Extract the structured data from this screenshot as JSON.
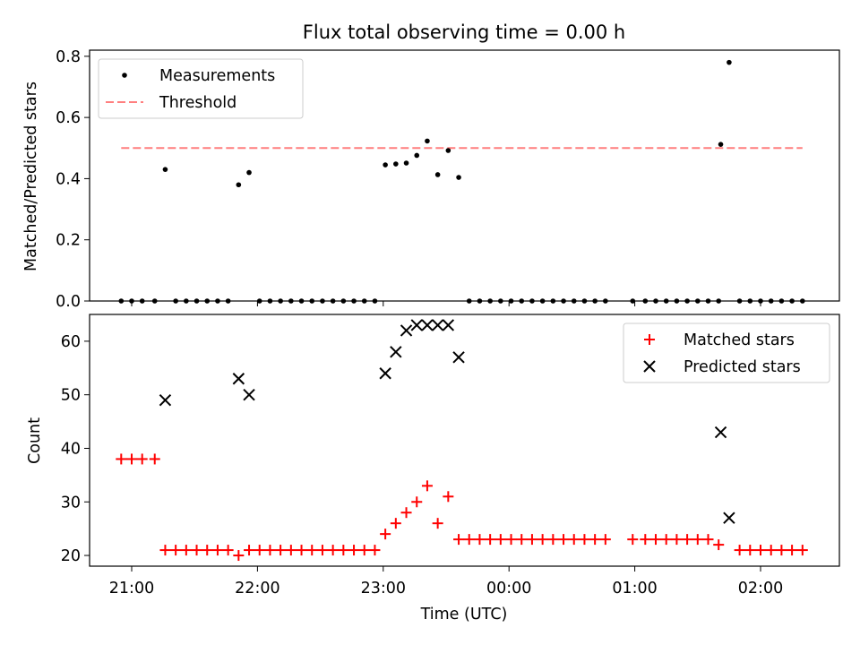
{
  "chart_data": [
    {
      "type": "scatter",
      "title": "Flux total observing time = 0.00 h",
      "ylabel": "Matched/Predicted stars",
      "ylim": [
        0,
        0.82
      ],
      "yticks": [
        0.0,
        0.2,
        0.4,
        0.6,
        0.8
      ],
      "ytick_labels": [
        "0.0",
        "0.2",
        "0.4",
        "0.6",
        "0.8"
      ],
      "legend": "top-left",
      "series": [
        {
          "name": "Measurements",
          "color": "#000000",
          "marker": "dot",
          "points": [
            [
              "20:55",
              0.0
            ],
            [
              "21:00",
              0.0
            ],
            [
              "21:05",
              0.0
            ],
            [
              "21:11",
              0.0
            ],
            [
              "21:16",
              0.43
            ],
            [
              "21:21",
              0.0
            ],
            [
              "21:26",
              0.0
            ],
            [
              "21:31",
              0.0
            ],
            [
              "21:36",
              0.0
            ],
            [
              "21:41",
              0.0
            ],
            [
              "21:46",
              0.0
            ],
            [
              "21:51",
              0.38
            ],
            [
              "21:56",
              0.42
            ],
            [
              "22:01",
              0.0
            ],
            [
              "22:06",
              0.0
            ],
            [
              "22:11",
              0.0
            ],
            [
              "22:16",
              0.0
            ],
            [
              "22:21",
              0.0
            ],
            [
              "22:26",
              0.0
            ],
            [
              "22:31",
              0.0
            ],
            [
              "22:36",
              0.0
            ],
            [
              "22:41",
              0.0
            ],
            [
              "22:46",
              0.0
            ],
            [
              "22:51",
              0.0
            ],
            [
              "22:56",
              0.0
            ],
            [
              "23:01",
              0.445
            ],
            [
              "23:06",
              0.448
            ],
            [
              "23:11",
              0.451
            ],
            [
              "23:16",
              0.476
            ],
            [
              "23:21",
              0.523
            ],
            [
              "23:26",
              0.413
            ],
            [
              "23:31",
              0.492
            ],
            [
              "23:36",
              0.404
            ],
            [
              "23:41",
              0.0
            ],
            [
              "23:46",
              0.0
            ],
            [
              "23:51",
              0.0
            ],
            [
              "23:56",
              0.0
            ],
            [
              "00:01",
              0.0
            ],
            [
              "00:06",
              0.0
            ],
            [
              "00:11",
              0.0
            ],
            [
              "00:16",
              0.0
            ],
            [
              "00:21",
              0.0
            ],
            [
              "00:26",
              0.0
            ],
            [
              "00:31",
              0.0
            ],
            [
              "00:36",
              0.0
            ],
            [
              "00:41",
              0.0
            ],
            [
              "00:46",
              0.0
            ],
            [
              "00:59",
              0.0
            ],
            [
              "01:05",
              0.0
            ],
            [
              "01:10",
              0.0
            ],
            [
              "01:15",
              0.0
            ],
            [
              "01:20",
              0.0
            ],
            [
              "01:25",
              0.0
            ],
            [
              "01:30",
              0.0
            ],
            [
              "01:35",
              0.0
            ],
            [
              "01:40",
              0.0
            ],
            [
              "01:41",
              0.512
            ],
            [
              "01:45",
              0.78
            ],
            [
              "01:50",
              0.0
            ],
            [
              "01:55",
              0.0
            ],
            [
              "02:00",
              0.0
            ],
            [
              "02:05",
              0.0
            ],
            [
              "02:10",
              0.0
            ],
            [
              "02:15",
              0.0
            ],
            [
              "02:20",
              0.0
            ]
          ]
        },
        {
          "name": "Threshold",
          "color": "#ff7f7f",
          "style": "dashed",
          "points": [
            [
              "20:55",
              0.5
            ],
            [
              "02:20",
              0.5
            ]
          ]
        }
      ]
    },
    {
      "type": "scatter",
      "xlabel": "Time (UTC)",
      "ylabel": "Count",
      "ylim": [
        18,
        65
      ],
      "yticks": [
        20,
        30,
        40,
        50,
        60
      ],
      "ytick_labels": [
        "20",
        "30",
        "40",
        "50",
        "60"
      ],
      "x_ticks": [
        "21:00",
        "22:00",
        "23:00",
        "00:00",
        "01:00",
        "02:00"
      ],
      "x_tick_labels": [
        "21:00",
        "22:00",
        "23:00",
        "00:00",
        "01:00",
        "02:00"
      ],
      "legend": "top-right",
      "series": [
        {
          "name": "Matched stars",
          "color": "#ff0000",
          "marker": "plus",
          "points": [
            [
              "20:55",
              38
            ],
            [
              "21:00",
              38
            ],
            [
              "21:05",
              38
            ],
            [
              "21:11",
              38
            ],
            [
              "21:16",
              21
            ],
            [
              "21:21",
              21
            ],
            [
              "21:26",
              21
            ],
            [
              "21:31",
              21
            ],
            [
              "21:36",
              21
            ],
            [
              "21:41",
              21
            ],
            [
              "21:46",
              21
            ],
            [
              "21:51",
              20
            ],
            [
              "21:56",
              21
            ],
            [
              "22:01",
              21
            ],
            [
              "22:06",
              21
            ],
            [
              "22:11",
              21
            ],
            [
              "22:16",
              21
            ],
            [
              "22:21",
              21
            ],
            [
              "22:26",
              21
            ],
            [
              "22:31",
              21
            ],
            [
              "22:36",
              21
            ],
            [
              "22:41",
              21
            ],
            [
              "22:46",
              21
            ],
            [
              "22:51",
              21
            ],
            [
              "22:56",
              21
            ],
            [
              "23:01",
              24
            ],
            [
              "23:06",
              26
            ],
            [
              "23:11",
              28
            ],
            [
              "23:16",
              30
            ],
            [
              "23:21",
              33
            ],
            [
              "23:26",
              26
            ],
            [
              "23:31",
              31
            ],
            [
              "23:36",
              23
            ],
            [
              "23:41",
              23
            ],
            [
              "23:46",
              23
            ],
            [
              "23:51",
              23
            ],
            [
              "23:56",
              23
            ],
            [
              "00:01",
              23
            ],
            [
              "00:06",
              23
            ],
            [
              "00:11",
              23
            ],
            [
              "00:16",
              23
            ],
            [
              "00:21",
              23
            ],
            [
              "00:26",
              23
            ],
            [
              "00:31",
              23
            ],
            [
              "00:36",
              23
            ],
            [
              "00:41",
              23
            ],
            [
              "00:46",
              23
            ],
            [
              "00:59",
              23
            ],
            [
              "01:05",
              23
            ],
            [
              "01:10",
              23
            ],
            [
              "01:15",
              23
            ],
            [
              "01:20",
              23
            ],
            [
              "01:25",
              23
            ],
            [
              "01:30",
              23
            ],
            [
              "01:35",
              23
            ],
            [
              "01:40",
              22
            ],
            [
              "01:50",
              21
            ],
            [
              "01:55",
              21
            ],
            [
              "02:00",
              21
            ],
            [
              "02:05",
              21
            ],
            [
              "02:10",
              21
            ],
            [
              "02:15",
              21
            ],
            [
              "02:20",
              21
            ]
          ]
        },
        {
          "name": "Predicted stars",
          "color": "#000000",
          "marker": "x",
          "points": [
            [
              "21:16",
              49
            ],
            [
              "21:51",
              53
            ],
            [
              "21:56",
              50
            ],
            [
              "23:01",
              54
            ],
            [
              "23:06",
              58
            ],
            [
              "23:11",
              62
            ],
            [
              "23:16",
              63
            ],
            [
              "23:21",
              63
            ],
            [
              "23:26",
              63
            ],
            [
              "23:31",
              63
            ],
            [
              "23:36",
              57
            ],
            [
              "01:41",
              43
            ],
            [
              "01:45",
              27
            ]
          ]
        }
      ]
    }
  ]
}
